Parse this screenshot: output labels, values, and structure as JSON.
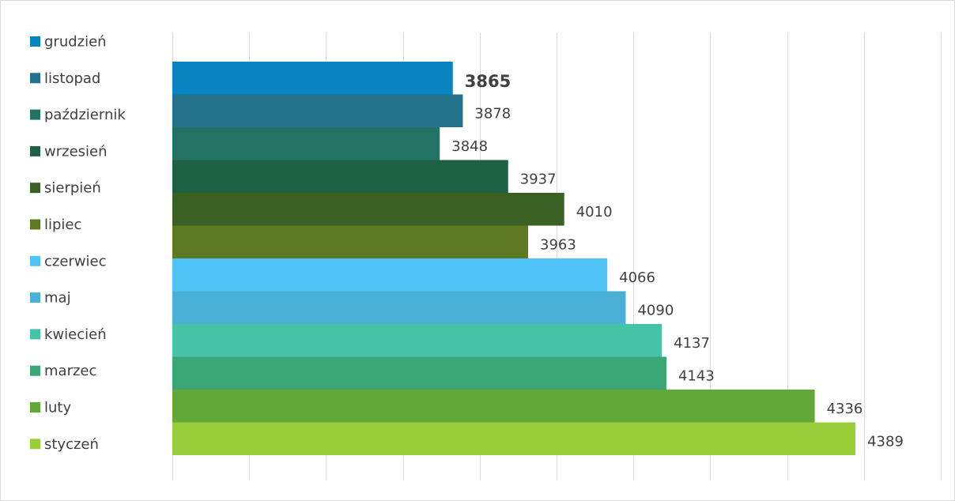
{
  "chart_data": {
    "type": "bar",
    "orientation": "horizontal",
    "categories": [
      "grudzień",
      "listopad",
      "październik",
      "wrzesień",
      "sierpień",
      "lipiec",
      "czerwiec",
      "maj",
      "kwiecień",
      "marzec",
      "luty",
      "styczeń"
    ],
    "values": [
      3865,
      3878,
      3848,
      3937,
      4010,
      3963,
      4066,
      4090,
      4137,
      4143,
      4336,
      4389
    ],
    "value_labels": [
      "3865",
      "3878",
      "3848",
      "3937",
      "4010",
      "3963",
      "4066",
      "4090",
      "4137",
      "4143",
      "4336",
      "4389"
    ],
    "highlighted_label": "3865",
    "colors": [
      "#0A84C1",
      "#23718A",
      "#237364",
      "#1F6145",
      "#3A6123",
      "#5D7A22",
      "#4FC3F7",
      "#4BB0D6",
      "#45C3A6",
      "#3BA776",
      "#62A838",
      "#9ACD3A"
    ],
    "xlim": [
      3500,
      4500
    ],
    "grid": true,
    "legend_position": "left",
    "title": "",
    "xlabel": "",
    "ylabel": ""
  }
}
